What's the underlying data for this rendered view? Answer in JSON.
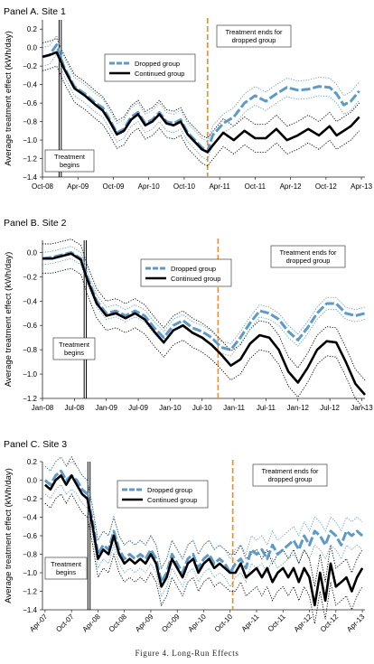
{
  "caption": "Figure 4. Long-Run Effects",
  "colors": {
    "dropped": "#5d9ac9",
    "continued": "#000000",
    "treatment_end_line": "#f28c28",
    "treatment_begin_line": "#000000"
  },
  "chart_data": [
    {
      "type": "line",
      "title": "Panel A. Site 1",
      "ylabel": "Average treatment effect (kWh/day)",
      "ylim": [
        -1.4,
        0.3
      ],
      "yticks": [
        0.2,
        0,
        -0.2,
        -0.4,
        -0.6,
        -0.8,
        -1.0,
        -1.2,
        -1.4
      ],
      "ytick_labels": [
        "0.2",
        "0.0",
        "−0.2",
        "−0.4",
        "−0.6",
        "−0.8",
        "−1.0",
        "−1.2",
        "−1.4"
      ],
      "xlim": [
        2008.75,
        2013.3
      ],
      "xticks": [
        2008.75,
        2009.25,
        2009.75,
        2010.25,
        2010.75,
        2011.25,
        2011.75,
        2012.25,
        2012.75,
        2013.25
      ],
      "xtick_labels": [
        "Oct-08",
        "Apr-09",
        "Oct-09",
        "Apr-10",
        "Oct-10",
        "Apr-11",
        "Oct-11",
        "Apr-12",
        "Oct-12",
        "Apr-13"
      ],
      "xtick_rotation": 0,
      "treatment_begins_x": 2009.0,
      "treatment_begins_label": "Treatment begins",
      "treatment_ends_x": 2011.08,
      "treatment_ends_label": "Treatment ends for dropped group",
      "legend": [
        "Dropped group",
        "Continued group"
      ],
      "legend_position": "top-center",
      "series": [
        {
          "name": "Dropped group",
          "x": [
            2008.75,
            2008.85,
            2008.95,
            2009.05,
            2009.2,
            2009.35,
            2009.5,
            2009.6,
            2009.7,
            2009.8,
            2009.9,
            2010.0,
            2010.1,
            2010.2,
            2010.3,
            2010.4,
            2010.5,
            2010.6,
            2010.7,
            2010.8,
            2010.9,
            2011.0,
            2011.08,
            2011.15,
            2011.3,
            2011.45,
            2011.6,
            2011.75,
            2011.9,
            2012.05,
            2012.2,
            2012.35,
            2012.5,
            2012.65,
            2012.8,
            2012.9,
            2013.0,
            2013.1,
            2013.22
          ],
          "y": [
            -0.1,
            -0.08,
            0.03,
            -0.2,
            -0.42,
            -0.5,
            -0.6,
            -0.65,
            -0.78,
            -0.92,
            -0.88,
            -0.75,
            -0.7,
            -0.82,
            -0.78,
            -0.7,
            -0.8,
            -0.82,
            -0.78,
            -0.92,
            -1.0,
            -1.08,
            -1.12,
            -0.95,
            -0.82,
            -0.75,
            -0.6,
            -0.52,
            -0.58,
            -0.5,
            -0.43,
            -0.46,
            -0.45,
            -0.42,
            -0.43,
            -0.5,
            -0.62,
            -0.58,
            -0.47
          ]
        },
        {
          "name": "Continued group",
          "x": [
            2008.75,
            2008.85,
            2008.95,
            2009.05,
            2009.2,
            2009.35,
            2009.5,
            2009.6,
            2009.7,
            2009.8,
            2009.9,
            2010.0,
            2010.1,
            2010.2,
            2010.3,
            2010.4,
            2010.5,
            2010.6,
            2010.7,
            2010.8,
            2010.9,
            2011.0,
            2011.08,
            2011.15,
            2011.3,
            2011.45,
            2011.6,
            2011.75,
            2011.9,
            2012.05,
            2012.2,
            2012.35,
            2012.5,
            2012.65,
            2012.8,
            2012.9,
            2013.0,
            2013.1,
            2013.22
          ],
          "y": [
            -0.1,
            -0.08,
            -0.05,
            -0.22,
            -0.44,
            -0.52,
            -0.62,
            -0.68,
            -0.8,
            -0.94,
            -0.9,
            -0.78,
            -0.72,
            -0.84,
            -0.8,
            -0.72,
            -0.82,
            -0.84,
            -0.8,
            -0.94,
            -1.02,
            -1.1,
            -1.13,
            -1.06,
            -0.92,
            -1.0,
            -0.9,
            -0.98,
            -0.98,
            -0.88,
            -1.0,
            -0.95,
            -0.88,
            -0.95,
            -0.85,
            -0.95,
            -0.9,
            -0.85,
            -0.75
          ]
        }
      ],
      "ci_width": [
        0.1,
        0.15
      ]
    },
    {
      "type": "line",
      "title": "Panel B. Site 2",
      "ylabel": "Average treatment effect (kWh/day)",
      "ylim": [
        -1.2,
        0.1
      ],
      "yticks": [
        0.0,
        -0.2,
        -0.4,
        -0.6,
        -0.8,
        -1.0,
        -1.2
      ],
      "ytick_labels": [
        "0.0",
        "−0.2",
        "−0.4",
        "−0.6",
        "−0.8",
        "−1.0",
        "−1.2"
      ],
      "xlim": [
        2008.0,
        2013.05
      ],
      "xticks": [
        2008.0,
        2008.5,
        2009.0,
        2009.5,
        2010.0,
        2010.5,
        2011.0,
        2011.5,
        2012.0,
        2012.5,
        2013.0
      ],
      "xtick_labels": [
        "Jan-08",
        "Jul-08",
        "Jan-09",
        "Jul-09",
        "Jan-10",
        "Jul-10",
        "Jan-11",
        "Jul-11",
        "Jan-12",
        "Jul-12",
        "Jan-13"
      ],
      "xtick_rotation": 0,
      "treatment_begins_x": 2008.67,
      "treatment_begins_label": "Treatment begins",
      "treatment_ends_x": 2010.75,
      "treatment_ends_label": "Treatment ends for dropped group",
      "legend": [
        "Dropped group",
        "Continued group"
      ],
      "legend_position": "top-center",
      "series": [
        {
          "name": "Dropped group",
          "x": [
            2008.0,
            2008.15,
            2008.3,
            2008.45,
            2008.6,
            2008.7,
            2008.85,
            2009.0,
            2009.15,
            2009.3,
            2009.45,
            2009.6,
            2009.75,
            2009.9,
            2010.05,
            2010.2,
            2010.35,
            2010.5,
            2010.65,
            2010.8,
            2010.95,
            2011.1,
            2011.25,
            2011.4,
            2011.55,
            2011.7,
            2011.85,
            2012.0,
            2012.15,
            2012.3,
            2012.45,
            2012.6,
            2012.75,
            2012.9,
            2013.05
          ],
          "y": [
            -0.05,
            -0.04,
            -0.02,
            0.0,
            -0.05,
            -0.2,
            -0.4,
            -0.5,
            -0.48,
            -0.52,
            -0.48,
            -0.52,
            -0.62,
            -0.7,
            -0.6,
            -0.56,
            -0.62,
            -0.65,
            -0.7,
            -0.78,
            -0.8,
            -0.7,
            -0.58,
            -0.48,
            -0.5,
            -0.55,
            -0.65,
            -0.72,
            -0.62,
            -0.5,
            -0.42,
            -0.42,
            -0.5,
            -0.52,
            -0.5
          ]
        },
        {
          "name": "Continued group",
          "x": [
            2008.0,
            2008.15,
            2008.3,
            2008.45,
            2008.6,
            2008.7,
            2008.85,
            2009.0,
            2009.15,
            2009.3,
            2009.45,
            2009.6,
            2009.75,
            2009.9,
            2010.05,
            2010.2,
            2010.35,
            2010.5,
            2010.65,
            2010.8,
            2010.95,
            2011.1,
            2011.25,
            2011.4,
            2011.55,
            2011.7,
            2011.85,
            2012.0,
            2012.15,
            2012.3,
            2012.45,
            2012.6,
            2012.75,
            2012.9,
            2013.05
          ],
          "y": [
            -0.05,
            -0.05,
            -0.03,
            -0.01,
            -0.06,
            -0.22,
            -0.42,
            -0.52,
            -0.5,
            -0.54,
            -0.5,
            -0.55,
            -0.65,
            -0.74,
            -0.64,
            -0.6,
            -0.66,
            -0.7,
            -0.76,
            -0.84,
            -0.93,
            -0.88,
            -0.75,
            -0.68,
            -0.7,
            -0.8,
            -0.98,
            -1.07,
            -0.95,
            -0.8,
            -0.73,
            -0.74,
            -0.9,
            -1.08,
            -1.17
          ]
        }
      ],
      "ci_width": [
        0.05,
        0.12
      ]
    },
    {
      "type": "line",
      "title": "Panel C. Site 3",
      "ylabel": "Average treatment effect (kWh/day)",
      "ylim": [
        -1.4,
        0.2
      ],
      "yticks": [
        0.2,
        0.0,
        -0.2,
        -0.4,
        -0.6,
        -0.8,
        -1.0,
        -1.2,
        -1.4
      ],
      "ytick_labels": [
        "0.2",
        "0.0",
        "−0.2",
        "−0.4",
        "−0.6",
        "−0.8",
        "−1.0",
        "−1.2",
        "−1.4"
      ],
      "xlim": [
        2007.2,
        2013.3
      ],
      "xticks": [
        2007.25,
        2007.75,
        2008.25,
        2008.75,
        2009.25,
        2009.75,
        2010.25,
        2010.75,
        2011.25,
        2011.75,
        2012.25,
        2012.75,
        2013.25
      ],
      "xtick_labels": [
        "Apr-07",
        "Oct-07",
        "Apr-08",
        "Oct-08",
        "Apr-09",
        "Oct-09",
        "Apr-10",
        "Oct-10",
        "Apr-11",
        "Oct-11",
        "Apr-12",
        "Oct-12",
        "Apr-13"
      ],
      "xtick_rotation": -45,
      "treatment_begins_x": 2008.08,
      "treatment_begins_label": "Treatment begins",
      "treatment_ends_x": 2010.8,
      "treatment_ends_label": "Treatment ends for dropped group",
      "legend": [
        "Dropped group",
        "Continued group"
      ],
      "legend_position": "top-center",
      "series": [
        {
          "name": "Dropped group",
          "x": [
            2007.25,
            2007.35,
            2007.45,
            2007.55,
            2007.65,
            2007.75,
            2007.85,
            2007.95,
            2008.05,
            2008.15,
            2008.25,
            2008.35,
            2008.45,
            2008.55,
            2008.65,
            2008.75,
            2008.85,
            2008.95,
            2009.05,
            2009.15,
            2009.25,
            2009.35,
            2009.45,
            2009.55,
            2009.65,
            2009.75,
            2009.85,
            2009.95,
            2010.05,
            2010.15,
            2010.25,
            2010.35,
            2010.45,
            2010.55,
            2010.65,
            2010.75,
            2010.85,
            2010.95,
            2011.05,
            2011.15,
            2011.25,
            2011.35,
            2011.45,
            2011.55,
            2011.65,
            2011.75,
            2011.85,
            2011.95,
            2012.05,
            2012.15,
            2012.25,
            2012.35,
            2012.45,
            2012.55,
            2012.65,
            2012.75,
            2012.85,
            2012.95,
            2013.05,
            2013.15,
            2013.25
          ],
          "y": [
            0.0,
            -0.05,
            0.05,
            0.1,
            0.0,
            0.05,
            0.0,
            -0.1,
            -0.15,
            -0.45,
            -0.8,
            -0.7,
            -0.75,
            -0.55,
            -0.75,
            -0.85,
            -0.8,
            -0.85,
            -0.8,
            -0.85,
            -0.75,
            -0.85,
            -1.1,
            -1.0,
            -0.8,
            -0.9,
            -1.0,
            -0.85,
            -0.8,
            -0.95,
            -0.85,
            -0.8,
            -0.9,
            -0.85,
            -0.9,
            -1.0,
            -0.9,
            -0.85,
            -0.95,
            -0.75,
            -0.8,
            -0.75,
            -0.85,
            -0.7,
            -0.8,
            -0.75,
            -0.7,
            -0.65,
            -0.75,
            -0.6,
            -0.7,
            -0.55,
            -0.6,
            -0.7,
            -0.55,
            -0.6,
            -0.7,
            -0.55,
            -0.6,
            -0.55,
            -0.6
          ]
        },
        {
          "name": "Continued group",
          "x": [
            2007.25,
            2007.35,
            2007.45,
            2007.55,
            2007.65,
            2007.75,
            2007.85,
            2007.95,
            2008.05,
            2008.15,
            2008.25,
            2008.35,
            2008.45,
            2008.55,
            2008.65,
            2008.75,
            2008.85,
            2008.95,
            2009.05,
            2009.15,
            2009.25,
            2009.35,
            2009.45,
            2009.55,
            2009.65,
            2009.75,
            2009.85,
            2009.95,
            2010.05,
            2010.15,
            2010.25,
            2010.35,
            2010.45,
            2010.55,
            2010.65,
            2010.75,
            2010.85,
            2010.95,
            2011.05,
            2011.15,
            2011.25,
            2011.35,
            2011.45,
            2011.55,
            2011.65,
            2011.75,
            2011.85,
            2011.95,
            2012.05,
            2012.15,
            2012.25,
            2012.35,
            2012.45,
            2012.55,
            2012.65,
            2012.75,
            2012.85,
            2012.95,
            2013.05,
            2013.15,
            2013.25
          ],
          "y": [
            -0.05,
            -0.1,
            0.0,
            0.05,
            -0.05,
            0.05,
            -0.05,
            -0.15,
            -0.2,
            -0.5,
            -0.85,
            -0.75,
            -0.8,
            -0.6,
            -0.8,
            -0.9,
            -0.85,
            -0.9,
            -0.85,
            -0.9,
            -0.8,
            -0.9,
            -1.15,
            -1.05,
            -0.85,
            -0.95,
            -1.05,
            -0.9,
            -0.85,
            -1.0,
            -0.9,
            -0.85,
            -0.95,
            -0.9,
            -0.95,
            -1.0,
            -1.0,
            -0.9,
            -1.05,
            -1.0,
            -0.95,
            -1.05,
            -0.95,
            -1.1,
            -1.0,
            -0.95,
            -1.05,
            -0.95,
            -1.1,
            -0.95,
            -1.05,
            -1.35,
            -1.0,
            -1.3,
            -0.9,
            -1.15,
            -1.1,
            -1.05,
            -1.2,
            -1.05,
            -0.95
          ]
        }
      ],
      "ci_width": [
        0.15,
        0.2
      ]
    }
  ]
}
